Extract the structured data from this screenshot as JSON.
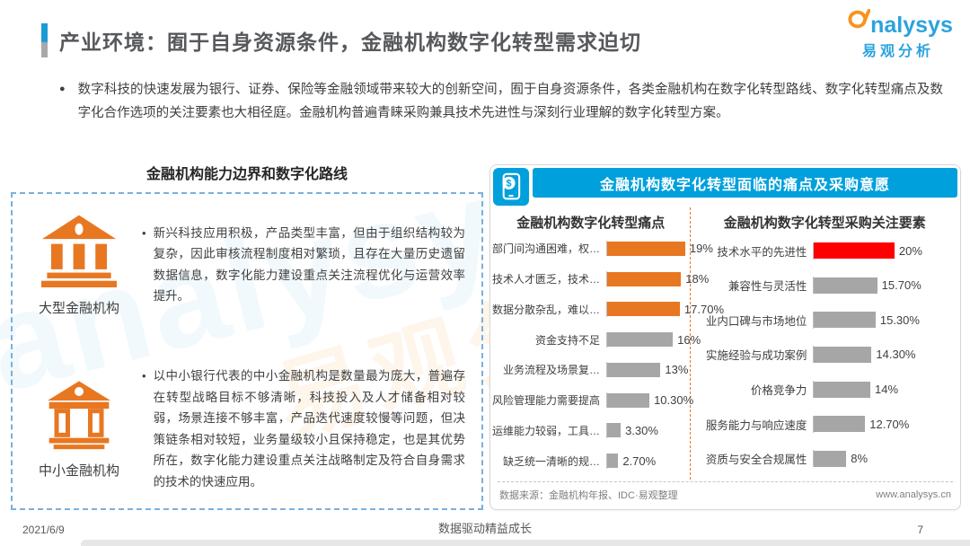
{
  "page": {
    "title": "产业环境：囿于自身资源条件，金融机构数字化转型需求迫切",
    "logo": {
      "brand": "nalysys",
      "brand_cn": "易观分析"
    },
    "intro": "数字科技的快速发展为银行、证券、保险等金融领域带来较大的创新空间，囿于自身资源条件，各类金融机构在数字化转型路线、数字化转型痛点及数字化合作选项的关注要素也大相径庭。金融机构普遍青睐采购兼具技术先进性与深刻行业理解的数字化转型方案。",
    "footer": {
      "date": "2021/6/9",
      "slogan": "数据驱动精益成长",
      "page_number": "7"
    }
  },
  "left_panel": {
    "title": "金融机构能力边界和数字化路线",
    "items": [
      {
        "icon": "bank-large-icon",
        "label": "大型金融机构",
        "bullet": "•",
        "text": "新兴科技应用积极，产品类型丰富，但由于组织结构较为复杂，因此审核流程制度相对繁琐，且存在大量历史遗留数据信息，数字化能力建设重点关注流程优化与运营效率提升。"
      },
      {
        "icon": "bank-small-icon",
        "label": "中小金融机构",
        "bullet": "•",
        "text": "以中小银行代表的中小金融机构是数量最为庞大，普遍存在转型战略目标不够清晰，科技投入及人才储备相对较弱，场景连接不够丰富，产品迭代速度较慢等问题，但决策链条相对较短，业务量级较小且保持稳定，也是其优势所在，数字化能力建设重点关注战略制定及符合自身需求的技术的快速应用。"
      }
    ]
  },
  "right_panel": {
    "header": "金融机构数字化转型面临的痛点及采购意愿",
    "header_icon": "mobile-payment-icon",
    "source": "数据来源：金融机构年报、IDC·易观整理",
    "website": "www.analysys.cn"
  },
  "colors": {
    "accent_orange": "#E87722",
    "bar_gray": "#A6A6A6",
    "highlight_red": "#FF0000",
    "header_blue": "#00A0DC",
    "logo_blue": "#2BA3DD",
    "logo_orange": "#F7941D"
  },
  "chart_data": [
    {
      "type": "bar",
      "orientation": "horizontal",
      "title": "金融机构数字化转型痛点",
      "categories": [
        "部门间沟通困难，权…",
        "技术人才匮乏，技术…",
        "数据分散杂乱，难以…",
        "资金支持不足",
        "业务流程及场景复…",
        "风险管理能力需要提高",
        "运维能力较弱，工具…",
        "缺乏统一清晰的规…"
      ],
      "values": [
        19,
        18,
        17.7,
        16,
        13,
        10.3,
        3.3,
        2.7
      ],
      "labels": [
        "19%",
        "18%",
        "17.70%",
        "16%",
        "13%",
        "10.30%",
        "3.30%",
        "2.70%"
      ],
      "bar_colors": [
        "#E87722",
        "#E87722",
        "#E87722",
        "#A6A6A6",
        "#A6A6A6",
        "#A6A6A6",
        "#A6A6A6",
        "#A6A6A6"
      ],
      "xlim": [
        0,
        20
      ],
      "grid": false,
      "legend": false
    },
    {
      "type": "bar",
      "orientation": "horizontal",
      "title": "金融机构数字化转型采购关注要素",
      "categories": [
        "技术水平的先进性",
        "兼容性与灵活性",
        "业内口碑与市场地位",
        "实施经验与成功案例",
        "价格竞争力",
        "服务能力与响应速度",
        "资质与安全合规属性"
      ],
      "values": [
        20,
        15.7,
        15.3,
        14.3,
        14,
        12.7,
        8
      ],
      "labels": [
        "20%",
        "15.70%",
        "15.30%",
        "14.30%",
        "14%",
        "12.70%",
        "8%"
      ],
      "bar_colors": [
        "#FF0000",
        "#A6A6A6",
        "#A6A6A6",
        "#A6A6A6",
        "#A6A6A6",
        "#A6A6A6",
        "#A6A6A6"
      ],
      "xlim": [
        0,
        35
      ],
      "grid": false,
      "legend": false
    }
  ]
}
